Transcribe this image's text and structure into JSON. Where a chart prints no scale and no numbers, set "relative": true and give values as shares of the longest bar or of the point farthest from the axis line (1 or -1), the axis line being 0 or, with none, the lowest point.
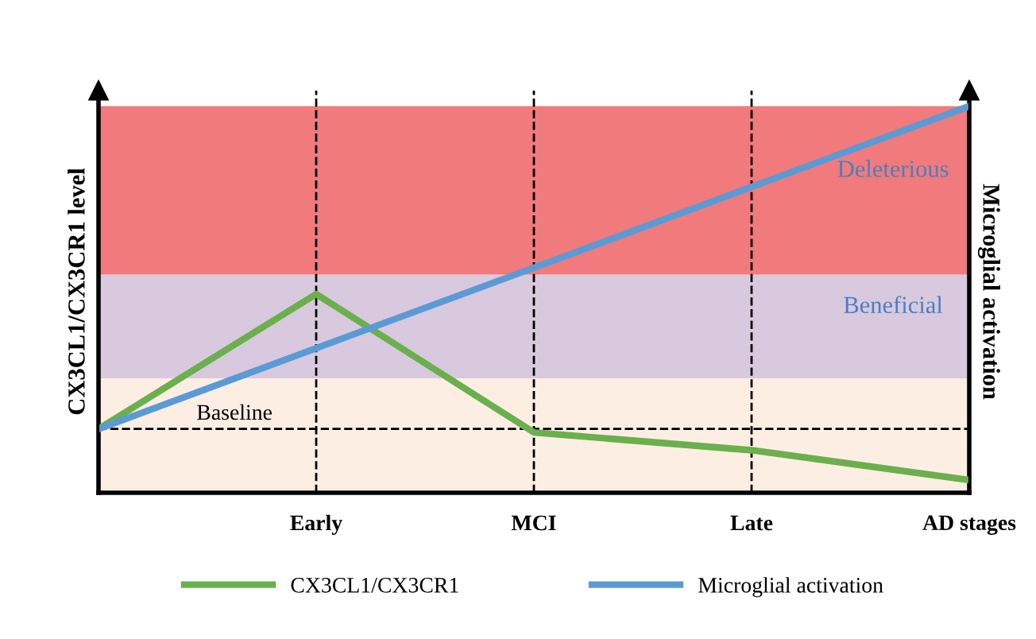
{
  "chart_data": {
    "type": "line",
    "relative": true,
    "ylabel": "CX3CL1/CX3CR1 level",
    "y2label": "Microglial activation",
    "categories": [
      null,
      "Early",
      "MCI",
      "Late",
      "AD stages"
    ],
    "series": [
      {
        "name": "CX3CL1/CX3CR1",
        "color": "#6ab04c",
        "values": [
          0.165,
          0.514,
          0.156,
          0.11,
          0.033
        ]
      },
      {
        "name": "Microglial activation",
        "color": "#5b9bd5",
        "values": [
          0.165,
          0.374,
          0.582,
          0.791,
          1.0
        ]
      }
    ],
    "bands": [
      {
        "axis": "y",
        "from": 0,
        "to": 0.296,
        "label": null,
        "color": "#fdeee4"
      },
      {
        "axis": "y",
        "from": 0.296,
        "to": 0.564,
        "label": "Beneficial",
        "color": "#d9c9de"
      },
      {
        "axis": "y",
        "from": 0.564,
        "to": 1.0,
        "label": "Deleterious",
        "color": "#f07a7c"
      }
    ],
    "ref_lines": [
      {
        "axis": "y",
        "value": 0.165,
        "label": "Baseline",
        "line_style": "dashed",
        "color": "#000000"
      }
    ],
    "legend": "bottom",
    "grid": "x",
    "marker": "none",
    "line_style": "solid"
  }
}
